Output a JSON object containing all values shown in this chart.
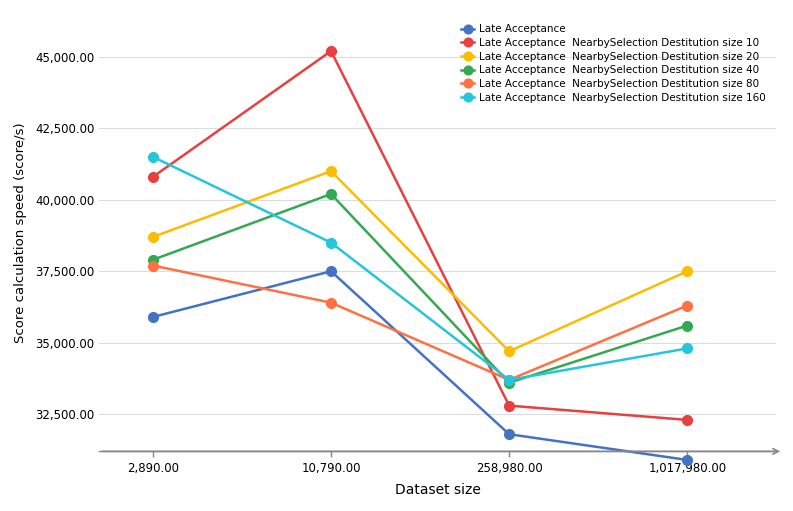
{
  "x_labels": [
    "2,890.00",
    "10,790.00",
    "258,980.00",
    "1,017,980.00"
  ],
  "x_values": [
    2890,
    10790,
    258980,
    1017980
  ],
  "series": [
    {
      "label": "Late Acceptance",
      "color": "#4472C4",
      "values": [
        35900,
        37500,
        31800,
        30900
      ]
    },
    {
      "label": "Late Acceptance  NearbySelection Destitution size 10",
      "color": "#E84040",
      "values": [
        40800,
        45200,
        32800,
        32300
      ]
    },
    {
      "label": "Late Acceptance  NearbySelection Destitution size 20",
      "color": "#FBBC04",
      "values": [
        38700,
        41000,
        34700,
        37500
      ]
    },
    {
      "label": "Late Acceptance  NearbySelection Destitution size 40",
      "color": "#34A853",
      "values": [
        37900,
        40200,
        33600,
        35600
      ]
    },
    {
      "label": "Late Acceptance  NearbySelection Destitution size 80",
      "color": "#FF7043",
      "values": [
        37700,
        36400,
        33700,
        36300
      ]
    },
    {
      "label": "Late Acceptance  NearbySelection Destitution size 160",
      "color": "#26C6DA",
      "values": [
        41500,
        38500,
        33700,
        34800
      ]
    }
  ],
  "xlabel": "Dataset size",
  "ylabel": "Score calculation speed (score/s)",
  "ylim": [
    31200,
    46500
  ],
  "yticks": [
    32500,
    35000,
    37500,
    40000,
    42500,
    45000
  ],
  "title": "",
  "background_color": "#ffffff",
  "grid_color": "#dddddd"
}
